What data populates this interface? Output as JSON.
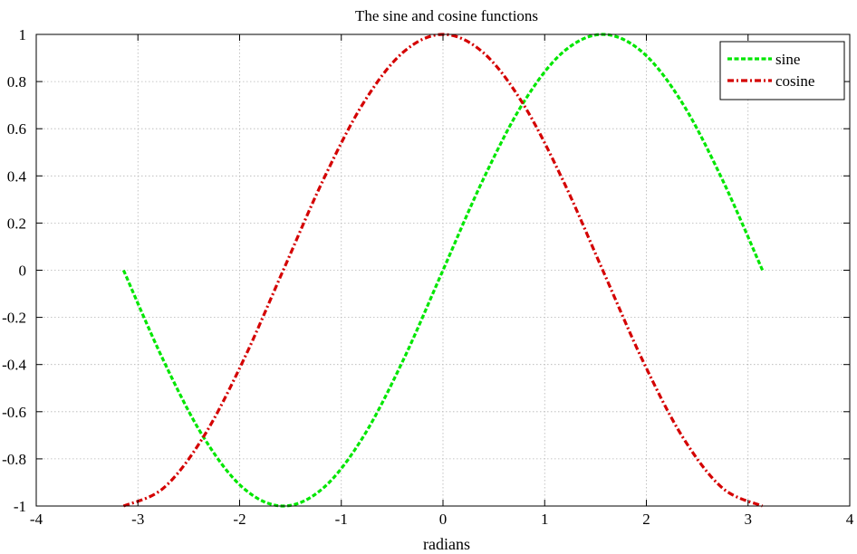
{
  "chart_data": {
    "type": "line",
    "title": "The sine and cosine functions",
    "xlabel": "radians",
    "ylabel": "",
    "xlim": [
      -4,
      4
    ],
    "ylim": [
      -1,
      1
    ],
    "xticks": [
      -4,
      -3,
      -2,
      -1,
      0,
      1,
      2,
      3,
      4
    ],
    "yticks": [
      -1,
      -0.8,
      -0.6,
      -0.4,
      -0.2,
      0,
      0.2,
      0.4,
      0.6,
      0.8,
      1
    ],
    "grid": true,
    "legend_position": "top-right",
    "series": [
      {
        "name": "sine",
        "color": "#00e600",
        "dash": "dashed",
        "x": [
          -3.1416,
          -2.7489,
          -2.3562,
          -1.9635,
          -1.5708,
          -1.1781,
          -0.7854,
          -0.3927,
          0,
          0.3927,
          0.7854,
          1.1781,
          1.5708,
          1.9635,
          2.3562,
          2.7489,
          3.1416
        ],
        "y": [
          0,
          -0.3827,
          -0.7071,
          -0.9239,
          -1,
          -0.9239,
          -0.7071,
          -0.3827,
          0,
          0.3827,
          0.7071,
          0.9239,
          1,
          0.9239,
          0.7071,
          0.3827,
          0
        ]
      },
      {
        "name": "cosine",
        "color": "#d40000",
        "dash": "dash-dot",
        "x": [
          -3.1416,
          -2.7489,
          -2.3562,
          -1.9635,
          -1.5708,
          -1.1781,
          -0.7854,
          -0.3927,
          0,
          0.3927,
          0.7854,
          1.1781,
          1.5708,
          1.9635,
          2.3562,
          2.7489,
          3.1416
        ],
        "y": [
          -1,
          -0.9239,
          -0.7071,
          -0.3827,
          0,
          0.3827,
          0.7071,
          0.9239,
          1,
          0.9239,
          0.7071,
          0.3827,
          0,
          -0.3827,
          -0.7071,
          -0.9239,
          -1
        ]
      }
    ]
  }
}
